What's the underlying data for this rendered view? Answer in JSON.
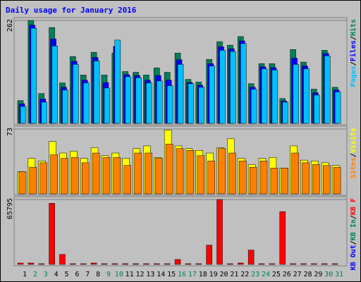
{
  "chart_data": {
    "type": "bar",
    "title": "Daily usage for January 2016",
    "categories": [
      "1",
      "2",
      "3",
      "4",
      "5",
      "6",
      "7",
      "8",
      "9",
      "10",
      "11",
      "12",
      "13",
      "14",
      "15",
      "16",
      "17",
      "18",
      "19",
      "20",
      "21",
      "22",
      "23",
      "24",
      "25",
      "26",
      "27",
      "28",
      "29",
      "30",
      "31"
    ],
    "weekend_indices": [
      1,
      2,
      8,
      9,
      15,
      16,
      22,
      23,
      29,
      30
    ],
    "weekday_color": "#000000",
    "weekend_color": "#00805c",
    "legend_separator": "/",
    "panels": [
      {
        "ylim": [
          0,
          262
        ],
        "yticks": [
          262
        ],
        "series": [
          {
            "name": "Hits",
            "color": "#00805c",
            "values": [
              58,
              262,
              76,
              244,
              103,
              170,
              123,
              181,
              123,
              179,
              132,
              130,
              123,
              141,
              130,
              179,
              112,
              105,
              163,
              208,
              199,
              221,
              101,
              152,
              152,
              63,
              188,
              156,
              87,
              186,
              92
            ]
          },
          {
            "name": "Files",
            "color": "#0000ff",
            "values": [
              50,
              250,
              62,
              215,
              92,
              158,
              110,
              168,
              104,
              196,
              124,
              122,
              110,
              122,
              110,
              162,
              104,
              97,
              152,
              195,
              190,
              210,
              92,
              144,
              142,
              57,
              166,
              146,
              78,
              178,
              85
            ]
          },
          {
            "name": "Pages",
            "color": "#00c0ff",
            "values": [
              43,
              242,
              54,
              197,
              85,
              150,
              103,
              159,
              90,
              212,
              119,
              116,
              103,
              108,
              96,
              150,
              101,
              92,
              146,
              186,
              183,
              203,
              87,
              139,
              136,
              54,
              150,
              139,
              72,
              172,
              80
            ]
          }
        ]
      },
      {
        "ylim": [
          0,
          73
        ],
        "yticks": [
          73
        ],
        "series": [
          {
            "name": "Visits",
            "color": "#ffff00",
            "values": [
              25,
              40,
              37,
              59,
              46,
              48,
              40,
              52,
              43,
              46,
              40,
              51,
              54,
              41,
              72,
              54,
              51,
              49,
              46,
              52,
              62,
              40,
              33,
              40,
              41,
              29,
              54,
              38,
              37,
              35,
              32
            ]
          },
          {
            "name": "Sites",
            "color": "#ff8000",
            "values": [
              25,
              30,
              35,
              44,
              40,
              41,
              35,
              46,
              41,
              41,
              32,
              46,
              46,
              40,
              56,
              51,
              49,
              43,
              37,
              51,
              46,
              37,
              30,
              37,
              29,
              29,
              46,
              35,
              33,
              32,
              30
            ]
          }
        ]
      },
      {
        "ylim": [
          0,
          65795
        ],
        "yticks": [
          65795
        ],
        "series": [
          {
            "name": "KB F",
            "color": "#ff0000",
            "values": [
              1400,
              1400,
              700,
              62000,
              10100,
              700,
              700,
              1400,
              700,
              700,
              700,
              700,
              700,
              700,
              700,
              5000,
              700,
              700,
              19500,
              65795,
              700,
              1400,
              14500,
              700,
              700,
              53500,
              700,
              700,
              700,
              700,
              700
            ]
          },
          {
            "name": "KB In",
            "color": "#00805c",
            "values": [
              null,
              null,
              null,
              null,
              null,
              null,
              null,
              null,
              null,
              null,
              null,
              null,
              null,
              null,
              null,
              null,
              null,
              null,
              null,
              null,
              null,
              null,
              null,
              null,
              null,
              null,
              null,
              null,
              null,
              null,
              null
            ]
          },
          {
            "name": "KB Out",
            "color": "#0000ff",
            "values": [
              null,
              null,
              null,
              null,
              null,
              null,
              null,
              null,
              null,
              null,
              null,
              null,
              null,
              null,
              null,
              null,
              null,
              null,
              null,
              null,
              null,
              null,
              null,
              null,
              null,
              null,
              null,
              null,
              null,
              null,
              null
            ]
          }
        ]
      }
    ]
  }
}
